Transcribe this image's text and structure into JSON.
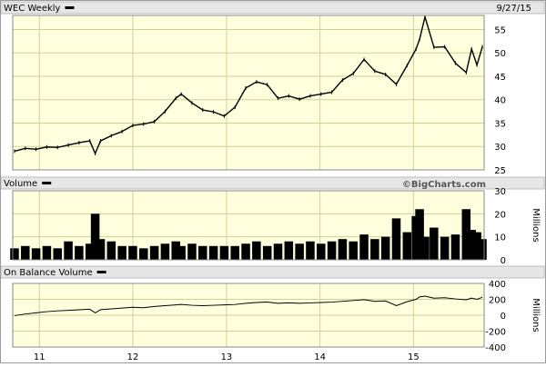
{
  "chart_data": [
    {
      "type": "ohlc",
      "panel": "price",
      "title": "WEC Weekly",
      "date_label": "9/27/15",
      "x_ticks": [
        "11",
        "12",
        "13",
        "14",
        "15"
      ],
      "y_ticks": [
        25,
        30,
        35,
        40,
        45,
        50,
        55
      ],
      "ylim": [
        25,
        58
      ],
      "grid": true,
      "background": "#ffffdd",
      "x": [
        "2010-09-26",
        "2010-11-07",
        "2010-12-19",
        "2011-01-30",
        "2011-03-13",
        "2011-04-24",
        "2011-06-05",
        "2011-07-17",
        "2011-08-07",
        "2011-08-28",
        "2011-10-09",
        "2011-11-20",
        "2012-01-01",
        "2012-02-12",
        "2012-03-25",
        "2012-05-06",
        "2012-06-17",
        "2012-07-08",
        "2012-08-19",
        "2012-09-30",
        "2012-11-11",
        "2012-12-23",
        "2013-02-03",
        "2013-03-17",
        "2013-04-28",
        "2013-06-09",
        "2013-07-21",
        "2013-09-01",
        "2013-10-13",
        "2013-11-24",
        "2014-01-05",
        "2014-02-16",
        "2014-03-30",
        "2014-05-11",
        "2014-06-22",
        "2014-08-03",
        "2014-09-14",
        "2014-10-26",
        "2014-12-07",
        "2015-01-11",
        "2015-01-25",
        "2015-02-15",
        "2015-03-22",
        "2015-05-03",
        "2015-06-14",
        "2015-07-26",
        "2015-08-16",
        "2015-09-06",
        "2015-09-27"
      ],
      "close": [
        29,
        29.6,
        29.4,
        29.9,
        29.8,
        30.3,
        30.8,
        31.2,
        28.5,
        31.2,
        32.3,
        33.2,
        34.5,
        34.8,
        35.3,
        37.5,
        40.3,
        41.2,
        39.3,
        37.8,
        37.4,
        36.5,
        38.4,
        42.5,
        43.8,
        43.2,
        40.3,
        40.8,
        40.1,
        40.8,
        41.2,
        41.6,
        44.2,
        45.6,
        48.6,
        46.1,
        45.4,
        43.3,
        47.3,
        50.8,
        52.9,
        57.7,
        51.2,
        51.3,
        47.8,
        45.8,
        50.8,
        47.4,
        51.3
      ]
    },
    {
      "type": "bar",
      "panel": "volume",
      "title": "Volume",
      "watermark": "©BigCharts.com",
      "unit_label": "Millions",
      "y_ticks": [
        0,
        10,
        20,
        30
      ],
      "ylim": [
        0,
        30
      ],
      "grid": true,
      "x": [
        "2010-09-26",
        "2010-11-07",
        "2010-12-19",
        "2011-01-30",
        "2011-03-13",
        "2011-04-24",
        "2011-06-05",
        "2011-07-17",
        "2011-08-07",
        "2011-08-28",
        "2011-10-09",
        "2011-11-20",
        "2012-01-01",
        "2012-02-12",
        "2012-03-25",
        "2012-05-06",
        "2012-06-17",
        "2012-07-08",
        "2012-08-19",
        "2012-09-30",
        "2012-11-11",
        "2012-12-23",
        "2013-02-03",
        "2013-03-17",
        "2013-04-28",
        "2013-06-09",
        "2013-07-21",
        "2013-09-01",
        "2013-10-13",
        "2013-11-24",
        "2014-01-05",
        "2014-02-16",
        "2014-03-30",
        "2014-05-11",
        "2014-06-22",
        "2014-08-03",
        "2014-09-14",
        "2014-10-26",
        "2014-12-07",
        "2015-01-11",
        "2015-01-25",
        "2015-02-15",
        "2015-03-22",
        "2015-05-03",
        "2015-06-14",
        "2015-07-26",
        "2015-08-16",
        "2015-09-06",
        "2015-09-27"
      ],
      "values": [
        5,
        6,
        5,
        6,
        5,
        8,
        6,
        7,
        20,
        9,
        8,
        6,
        6,
        5,
        6,
        7,
        8,
        6,
        7,
        6,
        6,
        6,
        6,
        7,
        8,
        6,
        7,
        8,
        7,
        8,
        7,
        8,
        9,
        8,
        11,
        9,
        10,
        18,
        12,
        19,
        22,
        10,
        14,
        10,
        11,
        22,
        13,
        12,
        9
      ]
    },
    {
      "type": "line",
      "panel": "obv",
      "title": "On Balance Volume",
      "unit_label": "Millions",
      "y_ticks": [
        -400,
        -200,
        0,
        200,
        400
      ],
      "ylim": [
        -400,
        400
      ],
      "grid": true,
      "x": [
        "2010-09-26",
        "2010-11-07",
        "2010-12-19",
        "2011-01-30",
        "2011-03-13",
        "2011-04-24",
        "2011-06-05",
        "2011-07-17",
        "2011-08-07",
        "2011-08-28",
        "2011-10-09",
        "2011-11-20",
        "2012-01-01",
        "2012-02-12",
        "2012-03-25",
        "2012-05-06",
        "2012-06-17",
        "2012-07-08",
        "2012-08-19",
        "2012-09-30",
        "2012-11-11",
        "2012-12-23",
        "2013-02-03",
        "2013-03-17",
        "2013-04-28",
        "2013-06-09",
        "2013-07-21",
        "2013-09-01",
        "2013-10-13",
        "2013-11-24",
        "2014-01-05",
        "2014-02-16",
        "2014-03-30",
        "2014-05-11",
        "2014-06-22",
        "2014-08-03",
        "2014-09-14",
        "2014-10-26",
        "2014-12-07",
        "2015-01-11",
        "2015-01-25",
        "2015-02-15",
        "2015-03-22",
        "2015-05-03",
        "2015-06-14",
        "2015-07-26",
        "2015-08-16",
        "2015-09-06",
        "2015-09-27"
      ],
      "values": [
        -5,
        15,
        30,
        45,
        55,
        62,
        68,
        75,
        30,
        70,
        80,
        90,
        100,
        95,
        110,
        120,
        130,
        135,
        125,
        120,
        125,
        130,
        135,
        150,
        160,
        165,
        150,
        155,
        150,
        155,
        160,
        165,
        175,
        185,
        195,
        175,
        180,
        120,
        170,
        200,
        230,
        240,
        215,
        220,
        205,
        195,
        215,
        200,
        225
      ]
    }
  ]
}
